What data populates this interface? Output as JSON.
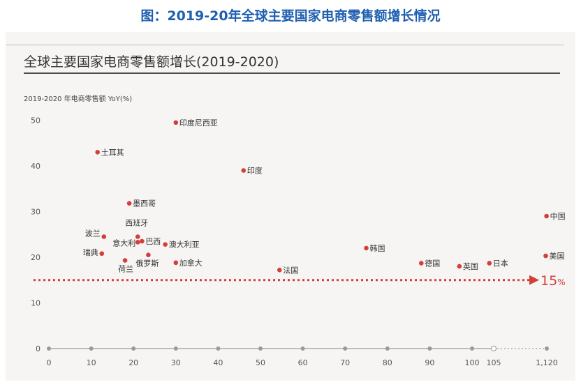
{
  "caption": "图：2019-20年全球主要国家电商零售额增长情况",
  "chart_data": {
    "type": "scatter",
    "title": "全球主要国家电商零售额增长(2019-2020)",
    "ylabel": "2019-2020 年电商零售额 YoY(%)",
    "xlabel": "",
    "x_ticks": [
      "0",
      "10",
      "20",
      "30",
      "40",
      "50",
      "60",
      "70",
      "80",
      "90",
      "100",
      "105",
      "1,120"
    ],
    "y_ticks": [
      "0",
      "10",
      "20",
      "30",
      "40",
      "50"
    ],
    "ylim": [
      0,
      50
    ],
    "x_axis_break": {
      "from": 105,
      "to": 1120
    },
    "points": [
      {
        "name": "印度尼西亚",
        "x": 30,
        "y": 49.5
      },
      {
        "name": "土耳其",
        "x": 11.5,
        "y": 43
      },
      {
        "name": "印度",
        "x": 46,
        "y": 39
      },
      {
        "name": "墨西哥",
        "x": 19,
        "y": 31.8
      },
      {
        "name": "西班牙",
        "x": 21,
        "y": 24.5
      },
      {
        "name": "波兰",
        "x": 13,
        "y": 24.5
      },
      {
        "name": "意大利",
        "x": 21,
        "y": 23.3
      },
      {
        "name": "巴西",
        "x": 22,
        "y": 23.5
      },
      {
        "name": "澳大利亚",
        "x": 27.5,
        "y": 22.8
      },
      {
        "name": "瑞典",
        "x": 12.5,
        "y": 20.8
      },
      {
        "name": "俄罗斯",
        "x": 23.5,
        "y": 20.5
      },
      {
        "name": "荷兰",
        "x": 18,
        "y": 19.3
      },
      {
        "name": "加拿大",
        "x": 30,
        "y": 18.8
      },
      {
        "name": "法国",
        "x": 54.5,
        "y": 17.2
      },
      {
        "name": "韩国",
        "x": 75,
        "y": 22
      },
      {
        "name": "德国",
        "x": 88,
        "y": 18.7
      },
      {
        "name": "英国",
        "x": 97,
        "y": 18
      },
      {
        "name": "日本",
        "x": 104,
        "y": 18.7
      },
      {
        "name": "美国",
        "x": 1100,
        "y": 20.3
      },
      {
        "name": "中国",
        "x": 1115,
        "y": 29
      }
    ],
    "reference_line": {
      "y": 15,
      "label_value": "15",
      "label_unit": "%"
    },
    "colors": {
      "point": "#d2403b",
      "reference": "#d2403b",
      "axis": "#9a9a9a"
    },
    "grid": false
  }
}
